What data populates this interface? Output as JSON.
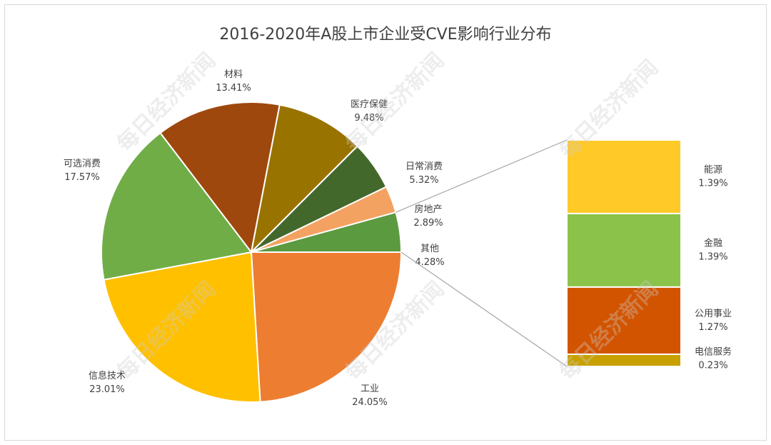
{
  "chart_data": {
    "type": "pie",
    "title": "2016-2020年A股上市企业受CVE影响行业分布",
    "slices": [
      {
        "label": "工业",
        "value": 24.05,
        "value_text": "24.05%",
        "color": "#ED7D31"
      },
      {
        "label": "信息技术",
        "value": 23.01,
        "value_text": "23.01%",
        "color": "#FFC000"
      },
      {
        "label": "可选消费",
        "value": 17.57,
        "value_text": "17.57%",
        "color": "#70AD47"
      },
      {
        "label": "材料",
        "value": 13.41,
        "value_text": "13.41%",
        "color": "#9E480E"
      },
      {
        "label": "医疗保健",
        "value": 9.48,
        "value_text": "9.48%",
        "color": "#997300"
      },
      {
        "label": "日常消费",
        "value": 5.32,
        "value_text": "5.32%",
        "color": "#43682B"
      },
      {
        "label": "房地产",
        "value": 2.89,
        "value_text": "2.89%",
        "color": "#F4A261"
      },
      {
        "label": "其他",
        "value": 4.28,
        "value_text": "4.28%",
        "color": "#5B9A3F"
      }
    ],
    "other_breakdown": [
      {
        "label": "能源",
        "value": 1.39,
        "value_text": "1.39%",
        "color": "#FFCA28"
      },
      {
        "label": "金融",
        "value": 1.39,
        "value_text": "1.39%",
        "color": "#8BC34A"
      },
      {
        "label": "公用事业",
        "value": 1.27,
        "value_text": "1.27%",
        "color": "#D35400"
      },
      {
        "label": "电信服务",
        "value": 0.23,
        "value_text": "0.23%",
        "color": "#C8A000"
      }
    ]
  },
  "watermark": "每日经济新闻"
}
